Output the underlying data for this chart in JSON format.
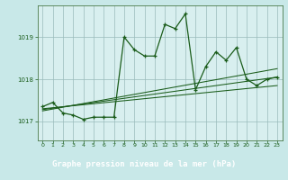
{
  "title": "Graphe pression niveau de la mer (hPa)",
  "bg_color": "#c8e8e8",
  "plot_bg_color": "#d8efef",
  "label_bg_color": "#5a8a5a",
  "line_color": "#1a5c1a",
  "grid_color": "#99bbbb",
  "text_color": "#1a5c1a",
  "label_text_color": "#ffffff",
  "spine_color": "#4a7a4a",
  "xlim": [
    -0.5,
    23.5
  ],
  "ylim": [
    1016.55,
    1019.75
  ],
  "yticks": [
    1017,
    1018,
    1019
  ],
  "xticks": [
    0,
    1,
    2,
    3,
    4,
    5,
    6,
    7,
    8,
    9,
    10,
    11,
    12,
    13,
    14,
    15,
    16,
    17,
    18,
    19,
    20,
    21,
    22,
    23
  ],
  "pressure_data": [
    1017.35,
    1017.45,
    1017.2,
    1017.15,
    1017.05,
    1017.1,
    1017.1,
    1017.1,
    1019.0,
    1018.7,
    1018.55,
    1018.55,
    1019.3,
    1019.2,
    1019.55,
    1017.75,
    1018.3,
    1018.65,
    1018.45,
    1018.75,
    1018.0,
    1017.85,
    1018.0,
    1018.05
  ],
  "trend_lines": [
    [
      1017.3,
      1017.85
    ],
    [
      1017.28,
      1018.05
    ],
    [
      1017.25,
      1018.25
    ]
  ],
  "marker_size": 3.5,
  "linewidth": 0.9,
  "trend_linewidth": 0.75
}
